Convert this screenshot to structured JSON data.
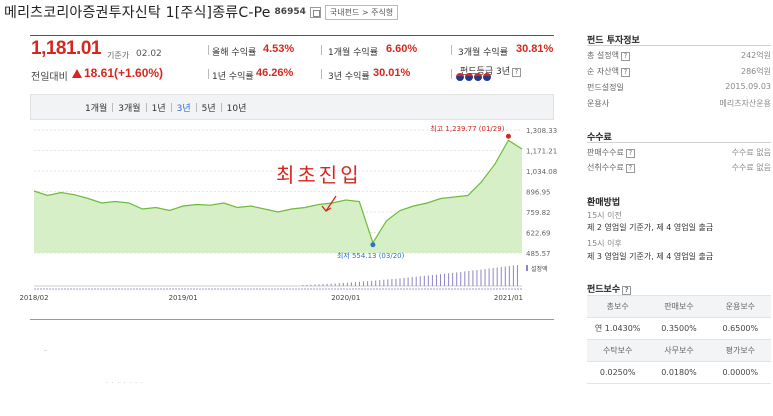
{
  "header": {
    "title": "메리츠코리아증권투자신탁 1[주식]종류C-Pe",
    "code": "86954",
    "category": "국내펀드 > 주식형"
  },
  "summary": {
    "price": "1,181.01",
    "price_date_label": "기준가",
    "price_date": "02.02",
    "change_label": "전일대비",
    "change_value": "18.61(+1.60%)",
    "returns": [
      {
        "label": "올해 수익률",
        "value": "4.53%"
      },
      {
        "label": "1개월 수익률",
        "value": "6.60%"
      },
      {
        "label": "3개월 수익률",
        "value": "30.81%"
      },
      {
        "label": "1년 수익률",
        "value": "46.26%"
      },
      {
        "label": "3년 수익률",
        "value": "30.01%"
      }
    ],
    "grade_label": "펀드등급 3년",
    "grade_dots": 4
  },
  "periods": {
    "items": [
      "1개월",
      "3개월",
      "1년",
      "3년",
      "5년",
      "10년"
    ],
    "active": "3년"
  },
  "chart_data": {
    "type": "area",
    "x_ticks": [
      "2018/02",
      "2019/01",
      "2020/01",
      "2021/01"
    ],
    "y_ticks": [
      "1,308.33",
      "1,171.21",
      "1,034.08",
      "896.95",
      "759.82",
      "622.69",
      "485.57"
    ],
    "ylim": [
      485.57,
      1308.33
    ],
    "points": [
      [
        "2018/02",
        900
      ],
      [
        "2018/03",
        870
      ],
      [
        "2018/04",
        890
      ],
      [
        "2018/05",
        875
      ],
      [
        "2018/06",
        850
      ],
      [
        "2018/07",
        820
      ],
      [
        "2018/08",
        830
      ],
      [
        "2018/09",
        820
      ],
      [
        "2018/10",
        780
      ],
      [
        "2018/11",
        790
      ],
      [
        "2018/12",
        770
      ],
      [
        "2019/01",
        800
      ],
      [
        "2019/02",
        810
      ],
      [
        "2019/03",
        805
      ],
      [
        "2019/04",
        820
      ],
      [
        "2019/05",
        790
      ],
      [
        "2019/06",
        800
      ],
      [
        "2019/07",
        780
      ],
      [
        "2019/08",
        760
      ],
      [
        "2019/09",
        780
      ],
      [
        "2019/10",
        790
      ],
      [
        "2019/11",
        810
      ],
      [
        "2019/12",
        820
      ],
      [
        "2020/01",
        840
      ],
      [
        "2020/02",
        830
      ],
      [
        "2020/03",
        554.13
      ],
      [
        "2020/04",
        700
      ],
      [
        "2020/05",
        770
      ],
      [
        "2020/06",
        800
      ],
      [
        "2020/07",
        820
      ],
      [
        "2020/08",
        850
      ],
      [
        "2020/09",
        860
      ],
      [
        "2020/10",
        870
      ],
      [
        "2020/11",
        960
      ],
      [
        "2020/12",
        1080
      ],
      [
        "2021/01",
        1239.77
      ],
      [
        "2021/02",
        1181.01
      ]
    ],
    "max_label": "최고 1,239.77 (01/29)",
    "min_label": "최저 554.13 (03/20)",
    "volume_label": "설정액",
    "annotation": "최초진입",
    "line_color": "#6bbd3a",
    "fill_color": "#d7efc6"
  },
  "sidebar": {
    "info_title": "펀드 투자정보",
    "info": [
      {
        "label": "총 설정액",
        "value": "242억원"
      },
      {
        "label": "순 자산액",
        "value": "286억원"
      },
      {
        "label": "펀드설정일",
        "value": "2015.09.03"
      },
      {
        "label": "운용사",
        "value": "메리츠자산운용"
      }
    ],
    "fee_title": "수수료",
    "fees": [
      {
        "label": "판매수수료",
        "value": "수수료 없음"
      },
      {
        "label": "선취수수료",
        "value": "수수료 없음"
      }
    ],
    "sale_title": "환매방법",
    "sale": {
      "before_label": "15시 이전",
      "before_text": "제 2 영업일 기준가, 제 4 영업일 출금",
      "after_label": "15시 이후",
      "after_text": "제 3 영업일 기준가, 제 4 영업일 출금"
    },
    "remun_title": "펀드보수",
    "remun_head1": [
      "총보수",
      "판매보수",
      "운용보수"
    ],
    "remun_row1": [
      "연 1.0430%",
      "0.3500%",
      "0.6500%"
    ],
    "remun_head2": [
      "수탁보수",
      "사무보수",
      "평가보수"
    ],
    "remun_row2": [
      "0.0250%",
      "0.0180%",
      "0.0000%"
    ]
  }
}
